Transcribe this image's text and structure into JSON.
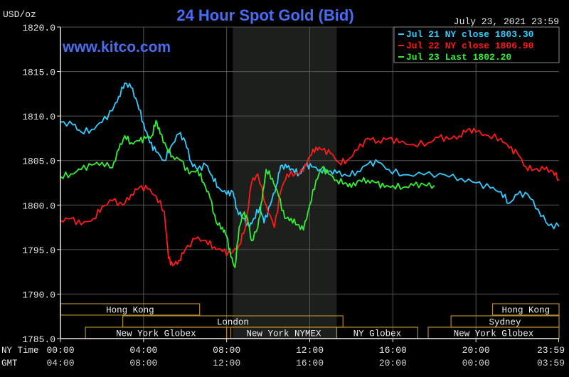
{
  "chart_data": {
    "type": "line",
    "title": "24 Hour Spot Gold (Bid)",
    "ylabel": "USD/oz",
    "timestamp": "July 23, 2021 23:59",
    "watermark": "www.kitco.com",
    "ylim": [
      1785,
      1820
    ],
    "y_ticks": [
      "1820.0",
      "1815.0",
      "1810.0",
      "1805.0",
      "1800.0",
      "1795.0",
      "1790.0",
      "1785.0"
    ],
    "x_ticks_ny": [
      "00:00",
      "04:00",
      "08:00",
      "12:00",
      "16:00",
      "20:00",
      "23:59"
    ],
    "x_ticks_gmt": [
      "04:00",
      "08:00",
      "12:00",
      "16:00",
      "20:00",
      "00:00",
      "03:59"
    ],
    "row_labels": {
      "ny": "NY Time",
      "gmt": "GMT"
    },
    "highlight_hours": [
      8.3,
      13.3
    ],
    "colors": {
      "jul21": "#33ccff",
      "jul22": "#ff1a1a",
      "jul23": "#33ee33",
      "axis": "#e6e6e6",
      "title": "#4a6cf0",
      "legend_text": "#ffffff",
      "session_box": "#b08a2a"
    },
    "legend": [
      {
        "label": "Jul 21 NY close 1803.30",
        "color": "#33ccff"
      },
      {
        "label": "Jul 22 NY close 1806.90",
        "color": "#ff1a1a"
      },
      {
        "label": "Jul 23 Last 1802.20",
        "color": "#33ee33"
      }
    ],
    "sessions": [
      {
        "label": "Hong Kong",
        "row": 0,
        "start": 0,
        "end": 6.7
      },
      {
        "label": "Hong Kong",
        "row": 0,
        "start": 20.8,
        "end": 24
      },
      {
        "label": "London",
        "row": 1,
        "start": 3,
        "end": 13.6
      },
      {
        "label": "Sydney",
        "row": 1,
        "start": 18.8,
        "end": 24
      },
      {
        "label": "New York Globex",
        "row": 2,
        "start": 1.2,
        "end": 8
      },
      {
        "label": "New York NYMEX",
        "row": 2,
        "start": 8.2,
        "end": 13.3
      },
      {
        "label": "NY Globex",
        "row": 2,
        "start": 13.3,
        "end": 17.2
      },
      {
        "label": "New York Globex",
        "row": 2,
        "start": 17.7,
        "end": 24
      }
    ],
    "series": [
      {
        "name": "Jul 21 NY close 1803.30",
        "color": "#33ccff",
        "points": [
          [
            0,
            1809.3
          ],
          [
            0.6,
            1809.0
          ],
          [
            1.0,
            1808.2
          ],
          [
            1.5,
            1808.5
          ],
          [
            2.0,
            1809.3
          ],
          [
            2.5,
            1810.6
          ],
          [
            2.8,
            1812.2
          ],
          [
            3.1,
            1813.7
          ],
          [
            3.4,
            1813.2
          ],
          [
            3.7,
            1811.5
          ],
          [
            4.0,
            1809.2
          ],
          [
            4.3,
            1807.0
          ],
          [
            4.6,
            1806.0
          ],
          [
            5.0,
            1805.0
          ],
          [
            5.3,
            1806.5
          ],
          [
            5.7,
            1808.0
          ],
          [
            6.0,
            1807.2
          ],
          [
            6.3,
            1804.8
          ],
          [
            6.6,
            1804.0
          ],
          [
            7.0,
            1804.5
          ],
          [
            7.3,
            1803.3
          ],
          [
            7.6,
            1802.0
          ],
          [
            8.0,
            1801.2
          ],
          [
            8.3,
            1801.5
          ],
          [
            8.5,
            1799.5
          ],
          [
            8.8,
            1798.5
          ],
          [
            9.1,
            1797.5
          ],
          [
            9.3,
            1798.5
          ],
          [
            9.6,
            1799.8
          ],
          [
            9.8,
            1798.0
          ],
          [
            10.1,
            1800.0
          ],
          [
            10.4,
            1802.3
          ],
          [
            10.6,
            1804.4
          ],
          [
            10.9,
            1804.2
          ],
          [
            11.2,
            1804.0
          ],
          [
            11.5,
            1803.5
          ],
          [
            11.8,
            1804.5
          ],
          [
            12.1,
            1804.3
          ],
          [
            12.5,
            1804.0
          ],
          [
            12.9,
            1803.8
          ],
          [
            13.3,
            1803.6
          ],
          [
            13.8,
            1803.3
          ],
          [
            14.3,
            1803.8
          ],
          [
            14.8,
            1804.6
          ],
          [
            15.3,
            1804.8
          ],
          [
            15.8,
            1804.0
          ],
          [
            16.5,
            1803.4
          ],
          [
            17.5,
            1803.4
          ],
          [
            18.5,
            1803.4
          ],
          [
            19.3,
            1803.0
          ],
          [
            20.0,
            1802.5
          ],
          [
            20.7,
            1801.9
          ],
          [
            21.2,
            1801.5
          ],
          [
            21.6,
            1800.2
          ],
          [
            22.0,
            1801.2
          ],
          [
            22.5,
            1801.2
          ],
          [
            23.0,
            1799.5
          ],
          [
            23.5,
            1797.7
          ],
          [
            24.0,
            1797.6
          ]
        ]
      },
      {
        "name": "Jul 22 NY close 1806.90",
        "color": "#ff1a1a",
        "points": [
          [
            0,
            1798.3
          ],
          [
            0.5,
            1798.5
          ],
          [
            1.0,
            1797.8
          ],
          [
            1.6,
            1798.5
          ],
          [
            2.0,
            1799.8
          ],
          [
            2.5,
            1800.5
          ],
          [
            3.0,
            1800.0
          ],
          [
            3.4,
            1801.2
          ],
          [
            3.8,
            1802.0
          ],
          [
            4.2,
            1801.8
          ],
          [
            4.6,
            1801.0
          ],
          [
            5.0,
            1799.3
          ],
          [
            5.2,
            1794.0
          ],
          [
            5.4,
            1793.2
          ],
          [
            5.7,
            1793.8
          ],
          [
            6.0,
            1795.0
          ],
          [
            6.5,
            1796.2
          ],
          [
            7.0,
            1796.0
          ],
          [
            7.4,
            1795.3
          ],
          [
            7.8,
            1794.8
          ],
          [
            8.2,
            1794.5
          ],
          [
            8.6,
            1795.5
          ],
          [
            8.9,
            1797.5
          ],
          [
            9.2,
            1802.5
          ],
          [
            9.5,
            1803.5
          ],
          [
            9.9,
            1800.0
          ],
          [
            10.3,
            1797.5
          ],
          [
            10.6,
            1801.5
          ],
          [
            10.9,
            1803.5
          ],
          [
            11.3,
            1803.5
          ],
          [
            11.7,
            1803.8
          ],
          [
            12.0,
            1805.5
          ],
          [
            12.3,
            1806.5
          ],
          [
            12.6,
            1806.2
          ],
          [
            13.0,
            1805.8
          ],
          [
            13.4,
            1804.8
          ],
          [
            13.8,
            1805.0
          ],
          [
            14.3,
            1806.2
          ],
          [
            14.8,
            1807.5
          ],
          [
            15.3,
            1807.2
          ],
          [
            15.8,
            1807.5
          ],
          [
            16.3,
            1807.0
          ],
          [
            17.0,
            1806.8
          ],
          [
            17.7,
            1807.0
          ],
          [
            18.2,
            1807.6
          ],
          [
            18.7,
            1807.4
          ],
          [
            19.2,
            1807.8
          ],
          [
            19.6,
            1808.5
          ],
          [
            20.0,
            1808.2
          ],
          [
            20.6,
            1807.8
          ],
          [
            21.2,
            1807.5
          ],
          [
            21.6,
            1806.4
          ],
          [
            22.0,
            1805.8
          ],
          [
            22.4,
            1804.3
          ],
          [
            22.8,
            1804.0
          ],
          [
            23.3,
            1804.0
          ],
          [
            23.7,
            1803.8
          ],
          [
            24.0,
            1802.9
          ]
        ]
      },
      {
        "name": "Jul 23 Last 1802.20",
        "color": "#33ee33",
        "points": [
          [
            0,
            1803.2
          ],
          [
            0.5,
            1803.5
          ],
          [
            1.0,
            1804.0
          ],
          [
            1.5,
            1804.5
          ],
          [
            2.0,
            1804.8
          ],
          [
            2.5,
            1804.2
          ],
          [
            2.8,
            1806.2
          ],
          [
            3.1,
            1807.8
          ],
          [
            3.4,
            1807.0
          ],
          [
            3.8,
            1807.2
          ],
          [
            4.1,
            1807.5
          ],
          [
            4.4,
            1807.8
          ],
          [
            4.6,
            1809.5
          ],
          [
            4.8,
            1808.0
          ],
          [
            5.1,
            1806.5
          ],
          [
            5.4,
            1805.5
          ],
          [
            5.8,
            1805.0
          ],
          [
            6.2,
            1803.5
          ],
          [
            6.6,
            1804.0
          ],
          [
            6.9,
            1802.5
          ],
          [
            7.2,
            1800.8
          ],
          [
            7.5,
            1798.0
          ],
          [
            7.8,
            1797.5
          ],
          [
            8.0,
            1796.5
          ],
          [
            8.2,
            1794.2
          ],
          [
            8.4,
            1793.0
          ],
          [
            8.6,
            1797.5
          ],
          [
            8.8,
            1799.0
          ],
          [
            9.0,
            1798.5
          ],
          [
            9.2,
            1796.0
          ],
          [
            9.5,
            1797.5
          ],
          [
            9.7,
            1800.5
          ],
          [
            9.9,
            1804.0
          ],
          [
            10.2,
            1803.0
          ],
          [
            10.5,
            1801.0
          ],
          [
            10.8,
            1798.5
          ],
          [
            11.1,
            1798.5
          ],
          [
            11.4,
            1797.8
          ],
          [
            11.7,
            1797.2
          ],
          [
            12.0,
            1800.0
          ],
          [
            12.3,
            1802.8
          ],
          [
            12.6,
            1804.2
          ],
          [
            12.9,
            1803.5
          ],
          [
            13.3,
            1802.8
          ],
          [
            13.7,
            1802.5
          ],
          [
            14.0,
            1802.0
          ],
          [
            14.4,
            1802.8
          ],
          [
            14.8,
            1802.8
          ],
          [
            15.2,
            1802.5
          ],
          [
            15.6,
            1802.0
          ],
          [
            16.0,
            1802.2
          ],
          [
            16.5,
            1802.0
          ],
          [
            17.0,
            1802.2
          ],
          [
            17.5,
            1802.3
          ],
          [
            18.0,
            1802.2
          ]
        ]
      }
    ]
  }
}
